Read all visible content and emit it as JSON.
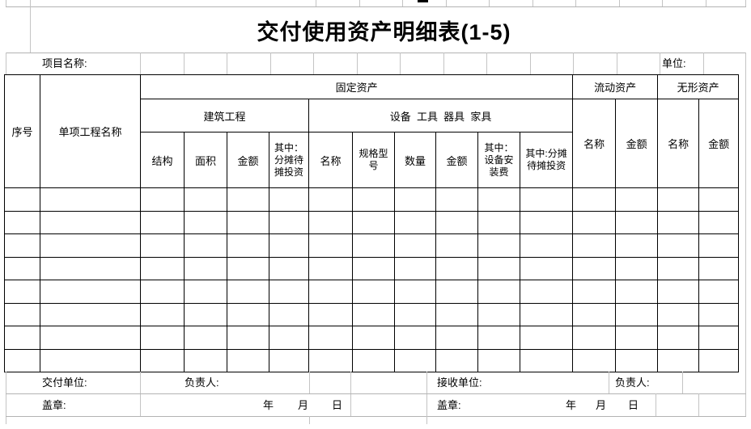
{
  "page": {
    "title": "交付使用资产明细表(1-5)",
    "project_label": "项目名称:",
    "unit_label": "单位:"
  },
  "table": {
    "col_headers": {
      "seq": "序号",
      "project_name": "单项工程名称",
      "fixed_assets": "固定资产",
      "current_assets": "流动资产",
      "intangible_assets": "无形资产",
      "construction": "建筑工程",
      "equipment_group": "设备  工具  器具  家具",
      "structure": "结构",
      "area": "面积",
      "construction_amount": "金额",
      "construction_apportioned": "其中：分摊待摊投资",
      "equipment_name": "名称",
      "spec_model": "规格型号",
      "quantity": "数量",
      "equipment_amount": "金额",
      "install_fee": "其中：设备安装费",
      "equipment_apportioned": "其中:分摊待摊投资",
      "current_name": "名称",
      "current_amount": "金额",
      "intangible_name": "名称",
      "intangible_amount": "金额"
    },
    "data_rows": 8,
    "data_cols": 16
  },
  "footer": {
    "deliver_unit_label": "交付单位:",
    "deliver_manager_label": "负责人:",
    "receive_unit_label": "接收单位:",
    "receive_manager_label": "负责人:",
    "seal_left_label": "盖章:",
    "seal_right_label": "盖章:",
    "year_label": "年",
    "month_label": "月",
    "day_label": "日"
  },
  "colors": {
    "table_border": "#000000",
    "grid_line": "#c4c4c4",
    "text": "#000000",
    "background": "#ffffff"
  }
}
